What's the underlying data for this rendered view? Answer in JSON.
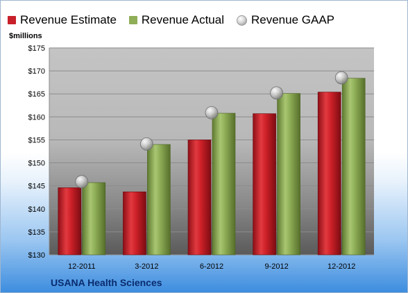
{
  "legend": {
    "estimate_label": "Revenue Estimate",
    "actual_label": "Revenue Actual",
    "gaap_label": "Revenue GAAP"
  },
  "unit_label": "$millions",
  "company": "USANA Health Sciences",
  "colors": {
    "estimate": "#c8202a",
    "actual": "#8fae57",
    "gaap": "#c0c0c0"
  },
  "chart_data": {
    "type": "bar",
    "categories": [
      "12-2011",
      "3-2012",
      "6-2012",
      "9-2012",
      "12-2012"
    ],
    "series": [
      {
        "name": "Revenue Estimate",
        "values": [
          144.6,
          143.7,
          155.0,
          160.7,
          165.4
        ]
      },
      {
        "name": "Revenue Actual",
        "values": [
          145.7,
          154.0,
          160.8,
          165.1,
          168.4
        ]
      },
      {
        "name": "Revenue GAAP",
        "values": [
          145.9,
          154.1,
          160.9,
          165.2,
          168.5
        ],
        "marker": "scatter"
      }
    ],
    "ylim": [
      130,
      175
    ],
    "yticks": [
      "$130",
      "$135",
      "$140",
      "$145",
      "$150",
      "$155",
      "$160",
      "$165",
      "$170",
      "$175"
    ],
    "grid": true,
    "legend_position": "top"
  }
}
